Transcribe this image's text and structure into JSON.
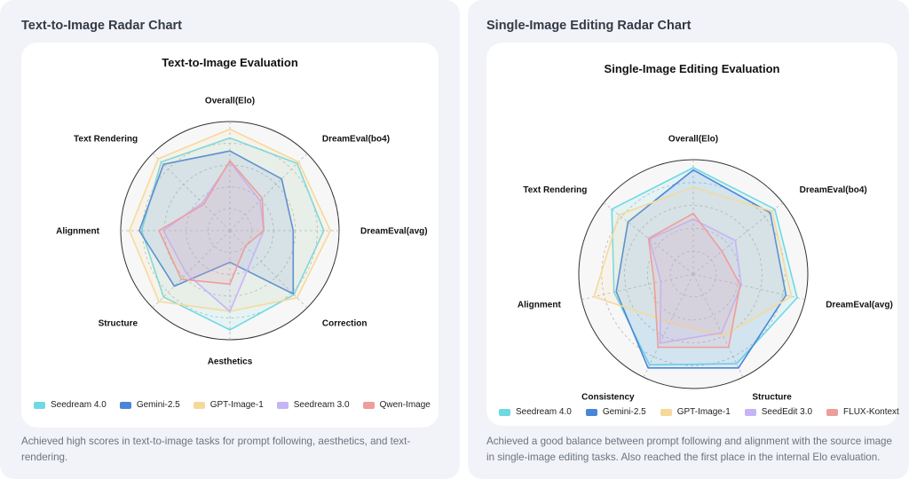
{
  "cards": [
    {
      "card_title": "Text-to-Image Radar Chart",
      "description": "Achieved high scores in text-to-image tasks for prompt following, aesthetics, and text-rendering."
    },
    {
      "card_title": "Single-Image Editing Radar Chart",
      "description": "Achieved a good balance between prompt following and alignment with the source image in single-image editing tasks. Also reached the first place in the internal Elo evaluation."
    }
  ],
  "chart_data": [
    {
      "type": "radar",
      "title": "Text-to-Image Evaluation",
      "axes": [
        "Overall(Elo)",
        "DreamEval(bo4)",
        "DreamEval(avg)",
        "Correction",
        "Aesthetics",
        "Structure",
        "Alignment",
        "Text Rendering"
      ],
      "range": [
        0,
        1
      ],
      "grid": true,
      "legend_position": "bottom",
      "series": [
        {
          "name": "Seedream 4.0",
          "color": "#6fd9e3",
          "values": [
            0.85,
            0.87,
            0.86,
            0.83,
            0.91,
            0.86,
            0.81,
            0.89
          ]
        },
        {
          "name": "Gemini-2.5",
          "color": "#4a86d8",
          "values": [
            0.73,
            0.67,
            0.58,
            0.82,
            0.29,
            0.72,
            0.83,
            0.86
          ]
        },
        {
          "name": "GPT-Image-1",
          "color": "#f6d99a",
          "values": [
            0.93,
            0.89,
            0.92,
            0.87,
            0.74,
            0.92,
            0.92,
            0.93
          ]
        },
        {
          "name": "Seedream 3.0",
          "color": "#c5b5f6",
          "values": [
            0.63,
            0.39,
            0.31,
            0.31,
            0.74,
            0.56,
            0.61,
            0.36
          ]
        },
        {
          "name": "Qwen-Image",
          "color": "#ee9e9a",
          "values": [
            0.64,
            0.42,
            0.31,
            0.2,
            0.49,
            0.63,
            0.65,
            0.34
          ]
        }
      ]
    },
    {
      "type": "radar",
      "title": "Single-Image Editing Evaluation",
      "axes": [
        "Overall(Elo)",
        "DreamEval(bo4)",
        "DreamEval(avg)",
        "Structure",
        "Consistency",
        "Alignment",
        "Text Rendering"
      ],
      "range": [
        0,
        1
      ],
      "grid": true,
      "legend_position": "bottom",
      "series": [
        {
          "name": "Seedream 4.0",
          "color": "#6fd9e3",
          "values": [
            0.93,
            0.91,
            0.93,
            0.87,
            0.88,
            0.71,
            0.91
          ]
        },
        {
          "name": "Gemini-2.5",
          "color": "#4a86d8",
          "values": [
            0.91,
            0.86,
            0.83,
            0.91,
            0.91,
            0.69,
            0.73
          ]
        },
        {
          "name": "GPT-Image-1",
          "color": "#f6d99a",
          "values": [
            0.76,
            0.88,
            0.88,
            0.6,
            0.47,
            0.89,
            0.83
          ]
        },
        {
          "name": "SeedEdit 3.0",
          "color": "#c5b5f6",
          "values": [
            0.48,
            0.47,
            0.43,
            0.57,
            0.67,
            0.29,
            0.49
          ]
        },
        {
          "name": "FLUX-Kontext",
          "color": "#ee9e9a",
          "values": [
            0.53,
            0.32,
            0.42,
            0.71,
            0.71,
            0.35,
            0.5
          ]
        }
      ]
    }
  ]
}
